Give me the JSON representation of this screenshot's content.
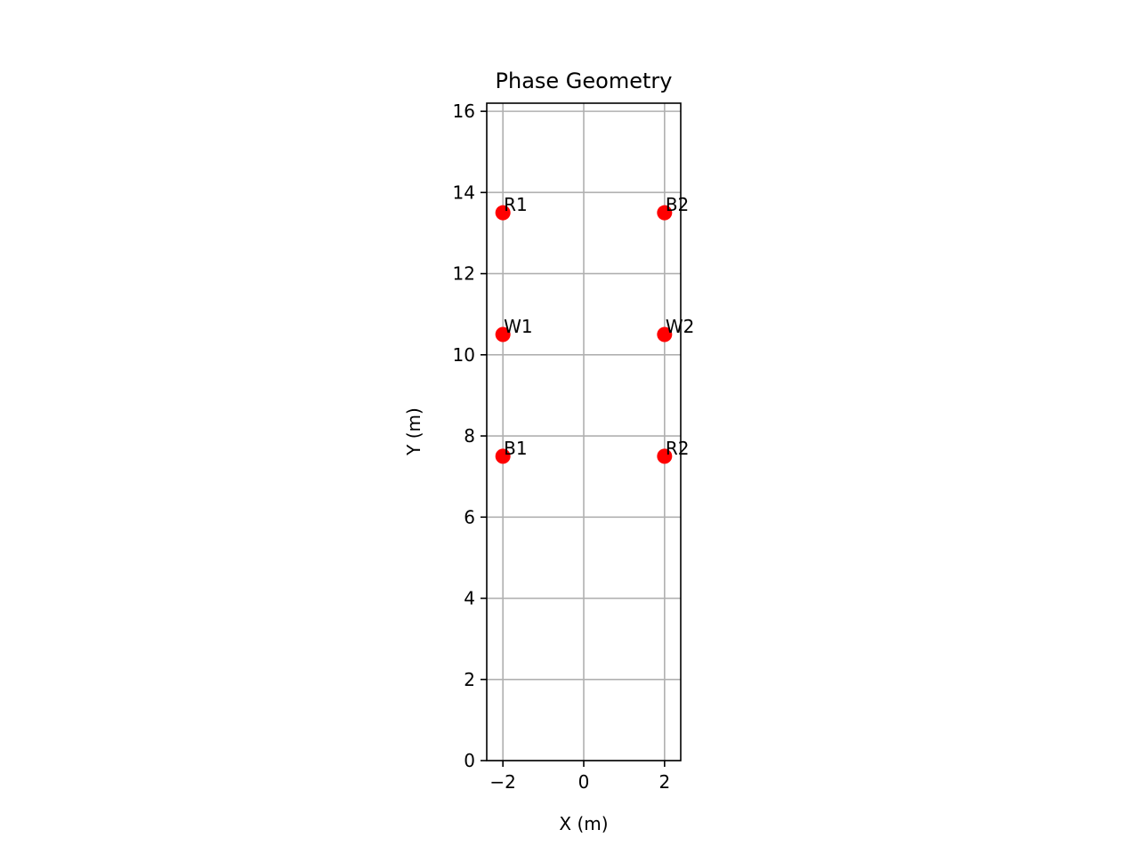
{
  "chart_data": {
    "type": "scatter",
    "title": "Phase Geometry",
    "xlabel": "X (m)",
    "ylabel": "Y (m)",
    "xlim": [
      -2.4,
      2.4
    ],
    "ylim": [
      0,
      16.2
    ],
    "xticks": [
      -2,
      0,
      2
    ],
    "xtick_labels": [
      "−2",
      "0",
      "2"
    ],
    "yticks": [
      0,
      2,
      4,
      6,
      8,
      10,
      12,
      14,
      16
    ],
    "ytick_labels": [
      "0",
      "2",
      "4",
      "6",
      "8",
      "10",
      "12",
      "14",
      "16"
    ],
    "grid": true,
    "marker_color": "#ff0000",
    "points": [
      {
        "label": "R1",
        "x": -2,
        "y": 13.5
      },
      {
        "label": "W1",
        "x": -2,
        "y": 10.5
      },
      {
        "label": "B1",
        "x": -2,
        "y": 7.5
      },
      {
        "label": "B2",
        "x": 2,
        "y": 13.5
      },
      {
        "label": "W2",
        "x": 2,
        "y": 10.5
      },
      {
        "label": "R2",
        "x": 2,
        "y": 7.5
      }
    ]
  }
}
